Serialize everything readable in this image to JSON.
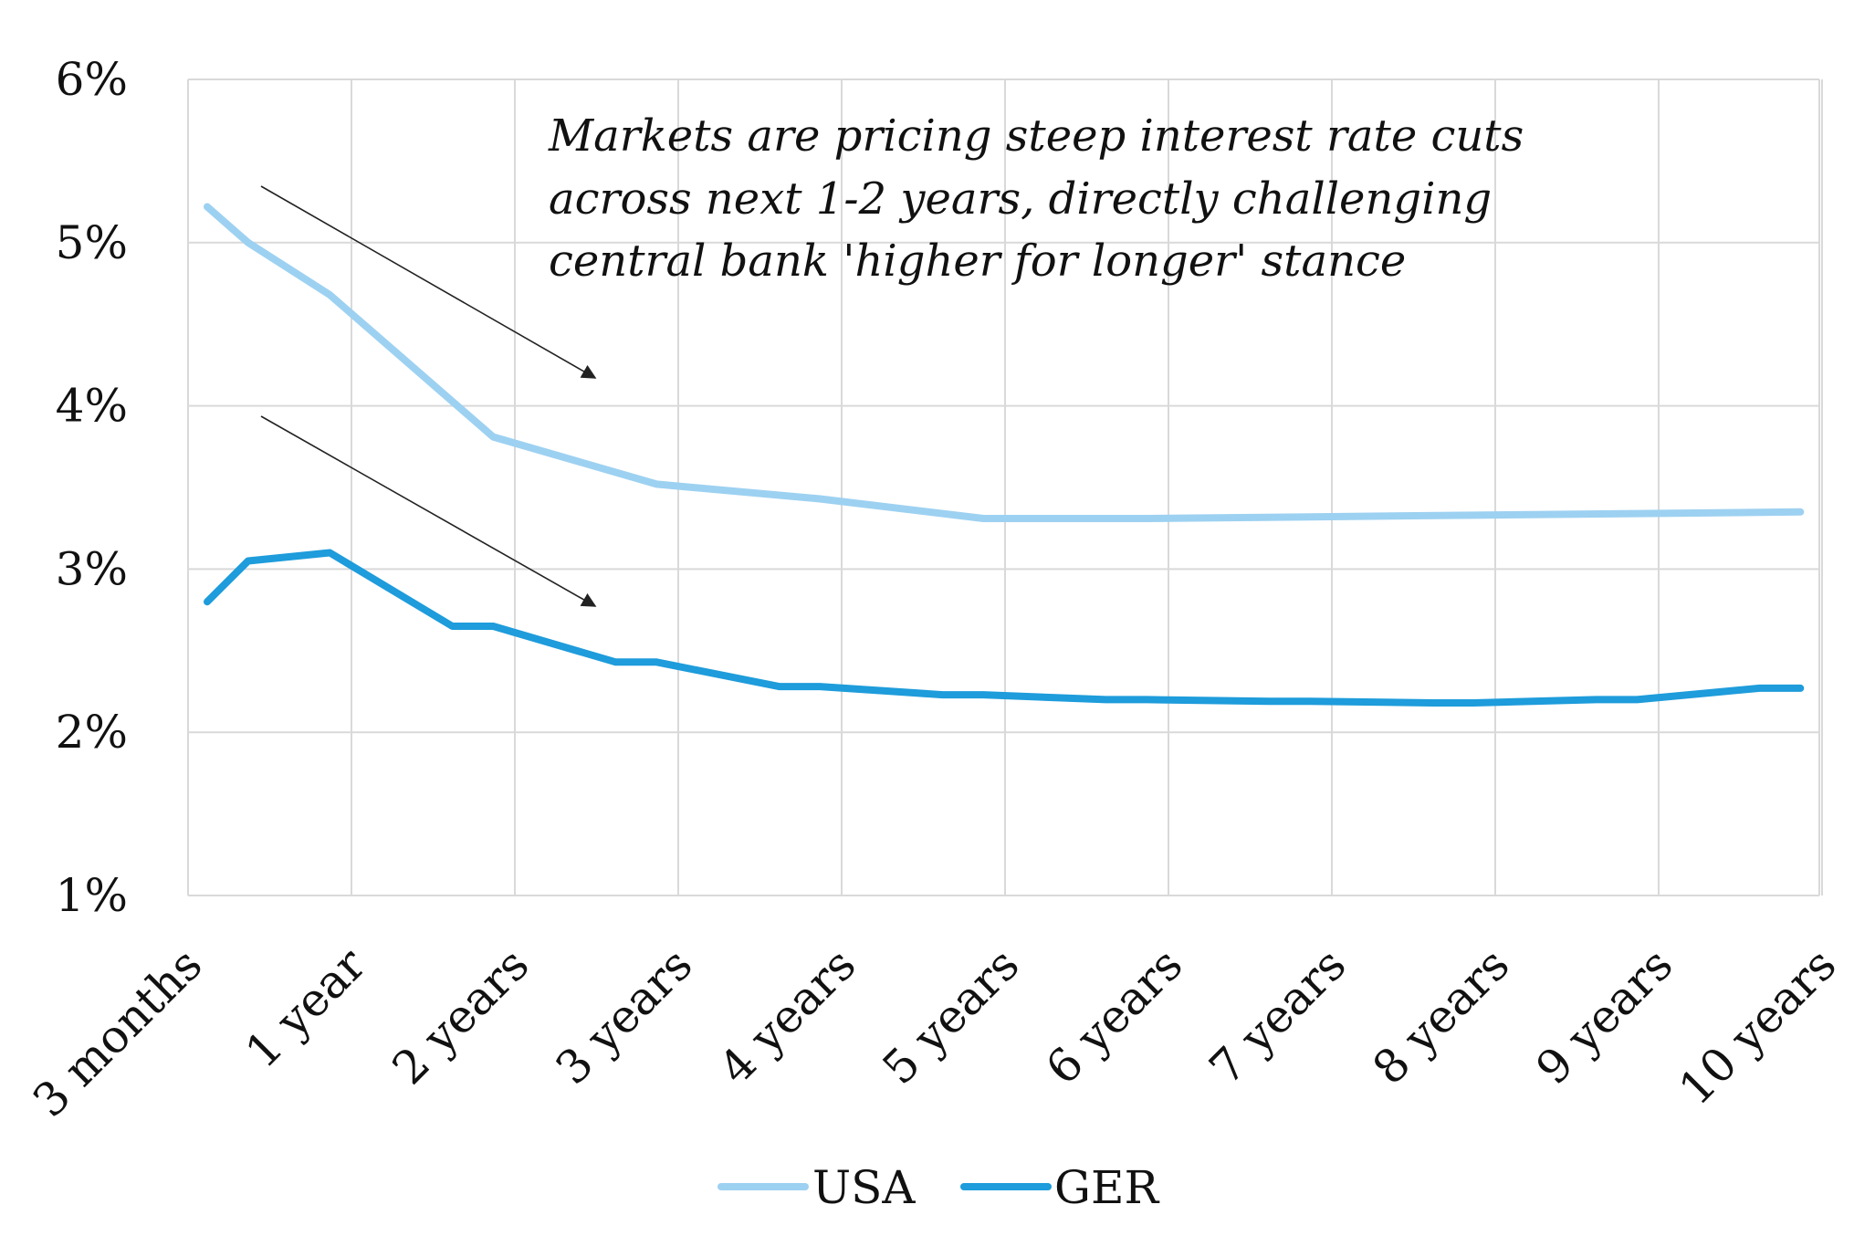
{
  "chart_data": {
    "type": "line",
    "title": "",
    "xlabel": "",
    "ylabel": "",
    "categories": [
      "3 months",
      "1 year",
      "2 years",
      "3 years",
      "4 years",
      "5 years",
      "6 years",
      "7 years",
      "8 years",
      "9 years",
      "10 years"
    ],
    "yticks": [
      "1%",
      "2%",
      "3%",
      "4%",
      "5%",
      "6%"
    ],
    "ylim": [
      1,
      6
    ],
    "grid": true,
    "legend_position": "bottom",
    "annotation": {
      "lines": [
        "Markets are pricing steep interest rate cuts",
        "across next 1-2 years, directly challenging",
        "central bank 'higher for longer' stance"
      ]
    },
    "series": [
      {
        "name": "USA",
        "color": "#9dd1f1",
        "x": [
          0,
          0.25,
          0.75,
          1.75,
          2.75,
          3.75,
          4.75,
          5.75,
          6.75,
          7.75,
          8.75,
          9.75
        ],
        "values": [
          5.22,
          5.0,
          4.68,
          3.81,
          3.52,
          3.43,
          3.31,
          3.31,
          3.32,
          3.33,
          3.34,
          3.35
        ]
      },
      {
        "name": "GER",
        "color": "#1e9cdb",
        "x": [
          0,
          0.25,
          0.75,
          1.5,
          1.75,
          2.5,
          2.75,
          3.5,
          3.75,
          4.5,
          4.75,
          5.5,
          5.75,
          6.5,
          6.75,
          7.5,
          7.75,
          8.5,
          8.75,
          9.5,
          9.75
        ],
        "values": [
          2.8,
          3.05,
          3.1,
          2.65,
          2.65,
          2.43,
          2.43,
          2.28,
          2.28,
          2.23,
          2.23,
          2.2,
          2.2,
          2.19,
          2.19,
          2.18,
          2.18,
          2.2,
          2.2,
          2.27,
          2.27
        ]
      }
    ]
  }
}
